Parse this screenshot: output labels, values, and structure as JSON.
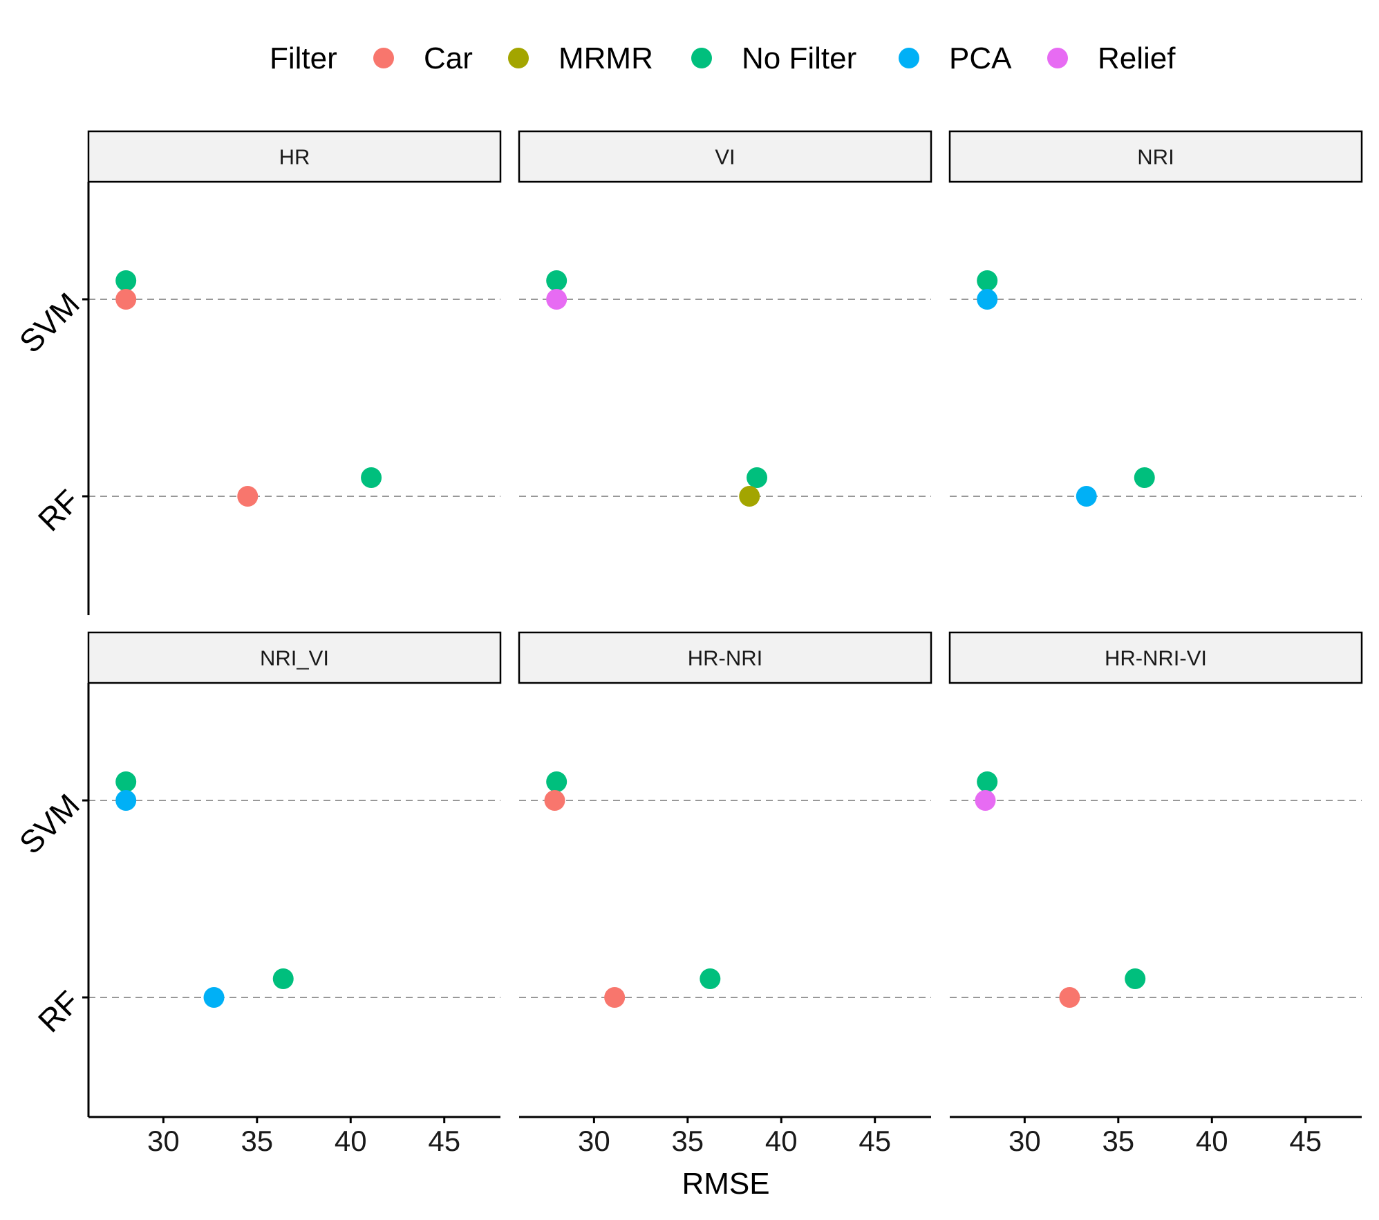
{
  "chart_data": {
    "type": "scatter",
    "legend": {
      "title": "Filter",
      "position": "top",
      "entries": [
        {
          "name": "Car",
          "color": "#F8766D"
        },
        {
          "name": "MRMR",
          "color": "#A3A500"
        },
        {
          "name": "No Filter",
          "color": "#00BF7D"
        },
        {
          "name": "PCA",
          "color": "#00B0F6"
        },
        {
          "name": "Relief",
          "color": "#E76BF3"
        }
      ]
    },
    "xlabel": "RMSE",
    "xticks": [
      "30",
      "35",
      "40",
      "45"
    ],
    "xlim": [
      26,
      48
    ],
    "categories": [
      "SVM",
      "RF"
    ],
    "grid": "dashed horizontal lines at each category",
    "panels": [
      {
        "title": "HR",
        "points": [
          {
            "filter": "No Filter",
            "model": "SVM",
            "x": 28.0
          },
          {
            "filter": "Car",
            "model": "SVM",
            "x": 28.0
          },
          {
            "filter": "Car",
            "model": "RF",
            "x": 34.5
          },
          {
            "filter": "No Filter",
            "model": "RF",
            "x": 41.1
          }
        ]
      },
      {
        "title": "VI",
        "points": [
          {
            "filter": "No Filter",
            "model": "SVM",
            "x": 28.0
          },
          {
            "filter": "Relief",
            "model": "SVM",
            "x": 28.0
          },
          {
            "filter": "No Filter",
            "model": "RF",
            "x": 38.7
          },
          {
            "filter": "MRMR",
            "model": "RF",
            "x": 38.3
          }
        ]
      },
      {
        "title": "NRI",
        "points": [
          {
            "filter": "No Filter",
            "model": "SVM",
            "x": 28.0
          },
          {
            "filter": "PCA",
            "model": "SVM",
            "x": 28.0
          },
          {
            "filter": "PCA",
            "model": "RF",
            "x": 33.3
          },
          {
            "filter": "No Filter",
            "model": "RF",
            "x": 36.4
          }
        ]
      },
      {
        "title": "NRI_VI",
        "points": [
          {
            "filter": "No Filter",
            "model": "SVM",
            "x": 28.0
          },
          {
            "filter": "PCA",
            "model": "SVM",
            "x": 28.0
          },
          {
            "filter": "PCA",
            "model": "RF",
            "x": 32.7
          },
          {
            "filter": "No Filter",
            "model": "RF",
            "x": 36.4
          }
        ]
      },
      {
        "title": "HR-NRI",
        "points": [
          {
            "filter": "No Filter",
            "model": "SVM",
            "x": 28.0
          },
          {
            "filter": "Car",
            "model": "SVM",
            "x": 27.9
          },
          {
            "filter": "Car",
            "model": "RF",
            "x": 31.1
          },
          {
            "filter": "No Filter",
            "model": "RF",
            "x": 36.2
          }
        ]
      },
      {
        "title": "HR-NRI-VI",
        "points": [
          {
            "filter": "No Filter",
            "model": "SVM",
            "x": 28.0
          },
          {
            "filter": "Relief",
            "model": "SVM",
            "x": 27.9
          },
          {
            "filter": "Car",
            "model": "RF",
            "x": 32.4
          },
          {
            "filter": "No Filter",
            "model": "RF",
            "x": 35.9
          }
        ]
      }
    ]
  }
}
